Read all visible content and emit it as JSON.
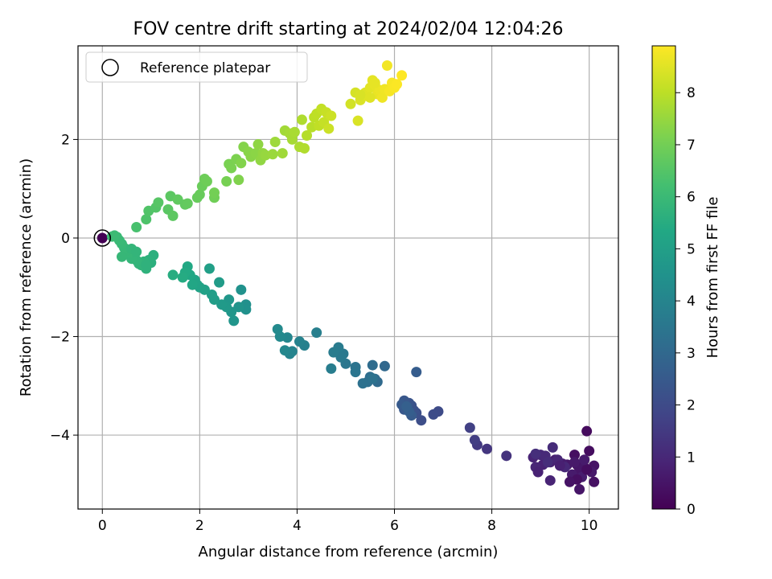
{
  "chart_data": {
    "type": "scatter",
    "title": "FOV centre drift starting at 2024/02/04 12:04:26",
    "xlabel": "Angular distance from reference (arcmin)",
    "ylabel": "Rotation from reference (arcmin)",
    "xlim": [
      -0.5,
      10.6
    ],
    "ylim": [
      -5.5,
      3.9
    ],
    "xticks": [
      0,
      2,
      4,
      6,
      8,
      10
    ],
    "yticks": [
      -4,
      -2,
      0,
      2
    ],
    "grid": true,
    "legend": {
      "position": "top-left",
      "entries": [
        "Reference platepar"
      ]
    },
    "reference_point": {
      "x": 0,
      "y": 0
    },
    "colorbar": {
      "label": "Hours from first FF file",
      "min": 0,
      "max": 8.9,
      "ticks": [
        0,
        1,
        2,
        3,
        4,
        5,
        6,
        7,
        8
      ],
      "colormap": "viridis"
    },
    "series": [
      {
        "x": [
          0.0,
          9.95,
          10.0,
          9.7,
          9.75,
          10.1,
          9.8,
          9.9,
          10.05,
          9.65,
          9.85,
          9.95,
          9.75,
          10.1,
          9.6,
          9.8,
          9.55,
          9.7,
          9.9,
          9.45,
          9.3,
          9.2,
          9.05,
          8.85,
          8.9,
          9.0,
          9.1,
          9.25,
          9.15,
          8.9,
          9.35,
          9.5,
          9.2,
          8.95,
          9.4
        ],
        "y": [
          0.0,
          -3.92,
          -4.32,
          -4.4,
          -4.6,
          -4.62,
          -4.7,
          -4.65,
          -4.75,
          -4.8,
          -4.85,
          -4.7,
          -4.9,
          -4.95,
          -4.95,
          -5.1,
          -4.6,
          -4.55,
          -4.5,
          -4.58,
          -4.5,
          -4.55,
          -4.6,
          -4.45,
          -4.65,
          -4.4,
          -4.42,
          -4.25,
          -4.55,
          -4.38,
          -4.5,
          -4.65,
          -4.92,
          -4.75,
          -4.62
        ],
        "hours": [
          0.0,
          0.25,
          0.3,
          0.35,
          0.4,
          0.45,
          0.5,
          0.55,
          0.6,
          0.65,
          0.7,
          0.3,
          0.35,
          0.4,
          0.45,
          0.5,
          0.55,
          0.6,
          0.65,
          0.7,
          0.75,
          0.8,
          0.85,
          0.9,
          0.95,
          1.0,
          1.05,
          1.1,
          1.15,
          1.2,
          0.95,
          1.0,
          0.9,
          0.85,
          0.8
        ]
      },
      {
        "x": [
          8.3,
          7.9,
          7.7,
          7.65,
          7.55,
          6.9,
          6.8,
          6.55,
          6.45,
          6.4,
          6.35,
          6.3,
          6.25,
          6.2,
          6.2,
          6.15,
          6.35,
          6.45,
          6.3,
          6.25,
          5.8,
          5.65,
          5.6,
          5.55,
          5.5,
          5.45,
          5.35,
          5.55,
          5.2,
          5.2,
          5.0,
          4.95,
          4.9,
          4.85,
          4.75,
          4.7,
          4.4,
          4.15,
          4.05,
          3.9,
          3.85,
          3.8,
          3.75,
          3.65,
          3.6
        ],
        "y": [
          -4.42,
          -4.28,
          -4.2,
          -4.1,
          -3.85,
          -3.52,
          -3.58,
          -3.7,
          -3.55,
          -3.5,
          -3.4,
          -3.35,
          -3.45,
          -3.3,
          -3.48,
          -3.38,
          -3.6,
          -2.72,
          -3.52,
          -3.42,
          -2.6,
          -2.92,
          -2.86,
          -2.58,
          -2.82,
          -2.92,
          -2.95,
          -2.85,
          -2.62,
          -2.72,
          -2.55,
          -2.35,
          -2.42,
          -2.22,
          -2.32,
          -2.65,
          -1.92,
          -2.18,
          -2.1,
          -2.3,
          -2.35,
          -2.02,
          -2.28,
          -2.0,
          -1.85
        ],
        "hours": [
          1.3,
          1.4,
          1.5,
          1.6,
          1.7,
          2.0,
          2.05,
          2.1,
          2.15,
          2.2,
          2.25,
          2.3,
          2.35,
          2.4,
          2.45,
          2.5,
          2.55,
          2.6,
          2.65,
          2.7,
          3.0,
          3.05,
          3.1,
          3.15,
          3.2,
          3.25,
          3.3,
          3.35,
          3.4,
          3.45,
          3.5,
          3.55,
          3.6,
          3.65,
          3.7,
          3.75,
          3.8,
          3.85,
          3.9,
          3.95,
          4.0,
          4.05,
          4.1,
          4.15,
          4.2
        ]
      },
      {
        "x": [
          2.95,
          2.95,
          2.85,
          2.8,
          2.7,
          2.65,
          2.6,
          2.55,
          2.45,
          2.4,
          2.3,
          2.25,
          2.2,
          2.1,
          2.0,
          1.95,
          1.9,
          1.85,
          1.8,
          1.75,
          1.7,
          1.65,
          1.45,
          1.0,
          1.05,
          0.95,
          0.9,
          0.85,
          0.8,
          0.75,
          0.7,
          0.65,
          0.6,
          0.55,
          0.5,
          0.45,
          0.4,
          0.35,
          0.3,
          0.25,
          0.2,
          0.4,
          0.6,
          0.9,
          0.7
        ],
        "y": [
          -1.35,
          -1.45,
          -1.05,
          -1.4,
          -1.68,
          -1.5,
          -1.25,
          -1.4,
          -1.35,
          -0.9,
          -1.25,
          -1.15,
          -0.62,
          -1.05,
          -1.0,
          -0.95,
          -0.85,
          -0.95,
          -0.75,
          -0.58,
          -0.7,
          -0.8,
          -0.75,
          -0.5,
          -0.35,
          -0.45,
          -0.62,
          -0.48,
          -0.55,
          -0.52,
          -0.45,
          -0.35,
          -0.42,
          -0.3,
          -0.25,
          -0.2,
          -0.12,
          -0.05,
          0.02,
          0.05,
          0.03,
          -0.38,
          -0.22,
          -0.55,
          -0.28
        ],
        "hours": [
          4.4,
          4.45,
          4.5,
          4.55,
          4.6,
          4.65,
          4.7,
          4.75,
          4.8,
          4.85,
          4.9,
          4.95,
          5.0,
          5.05,
          5.1,
          5.15,
          5.2,
          5.25,
          5.3,
          5.35,
          5.4,
          5.45,
          5.5,
          5.6,
          5.62,
          5.65,
          5.7,
          5.72,
          5.75,
          5.78,
          5.8,
          5.82,
          5.85,
          5.88,
          5.9,
          5.92,
          5.95,
          5.98,
          6.0,
          6.02,
          6.05,
          5.9,
          5.85,
          5.7,
          5.8
        ]
      },
      {
        "x": [
          0.7,
          0.9,
          0.95,
          1.1,
          1.15,
          1.35,
          1.4,
          1.45,
          1.55,
          1.7,
          1.75,
          1.95,
          2.0,
          2.05,
          2.1,
          2.15,
          2.3,
          2.3,
          2.55,
          2.6,
          2.65,
          2.75,
          2.8,
          2.85,
          2.9,
          3.0,
          3.05,
          3.15,
          3.2,
          3.25,
          3.3,
          3.35,
          3.5,
          3.55,
          3.7,
          3.75,
          3.85,
          3.9,
          3.95,
          4.05,
          4.1,
          4.15,
          4.2,
          4.3,
          4.35,
          4.4,
          4.45,
          4.5,
          4.55,
          4.6,
          4.65,
          4.7
        ],
        "y": [
          0.22,
          0.38,
          0.55,
          0.62,
          0.72,
          0.58,
          0.85,
          0.45,
          0.78,
          0.68,
          0.7,
          0.82,
          0.88,
          1.05,
          1.2,
          1.15,
          0.82,
          0.92,
          1.15,
          1.5,
          1.42,
          1.6,
          1.18,
          1.52,
          1.85,
          1.75,
          1.65,
          1.72,
          1.9,
          1.58,
          1.72,
          1.68,
          1.7,
          1.95,
          1.72,
          2.18,
          2.12,
          2.0,
          2.15,
          1.85,
          2.4,
          1.82,
          2.08,
          2.25,
          2.45,
          2.52,
          2.28,
          2.62,
          2.35,
          2.55,
          2.22,
          2.48
        ],
        "hours": [
          6.3,
          6.4,
          6.45,
          6.5,
          6.55,
          6.6,
          6.62,
          6.65,
          6.7,
          6.72,
          6.75,
          6.8,
          6.82,
          6.85,
          6.9,
          6.92,
          6.95,
          7.0,
          7.05,
          7.1,
          7.12,
          7.15,
          7.2,
          7.22,
          7.25,
          7.3,
          7.32,
          7.35,
          7.4,
          7.42,
          7.45,
          7.5,
          7.55,
          7.6,
          7.62,
          7.65,
          7.7,
          7.72,
          7.75,
          7.8,
          7.82,
          7.85,
          7.9,
          7.95,
          8.0,
          8.02,
          8.05,
          8.1,
          8.12,
          8.15,
          8.2,
          8.22
        ]
      },
      {
        "x": [
          5.1,
          5.2,
          5.25,
          5.3,
          5.4,
          5.45,
          5.5,
          5.55,
          5.6,
          5.65,
          5.7,
          5.75,
          5.8,
          5.85,
          5.9,
          5.95,
          6.0,
          6.05,
          6.15,
          5.3,
          5.5,
          5.6
        ],
        "y": [
          2.72,
          2.95,
          2.38,
          2.8,
          2.95,
          2.88,
          3.05,
          3.2,
          3.1,
          2.92,
          3.0,
          2.85,
          3.02,
          3.5,
          2.98,
          3.15,
          3.05,
          3.12,
          3.3,
          2.9,
          2.85,
          3.15
        ],
        "hours": [
          8.3,
          8.35,
          8.4,
          8.42,
          8.45,
          8.5,
          8.52,
          8.55,
          8.6,
          8.62,
          8.65,
          8.7,
          8.72,
          8.75,
          8.8,
          8.82,
          8.85,
          8.87,
          8.9,
          8.38,
          8.48,
          8.58
        ]
      }
    ]
  }
}
